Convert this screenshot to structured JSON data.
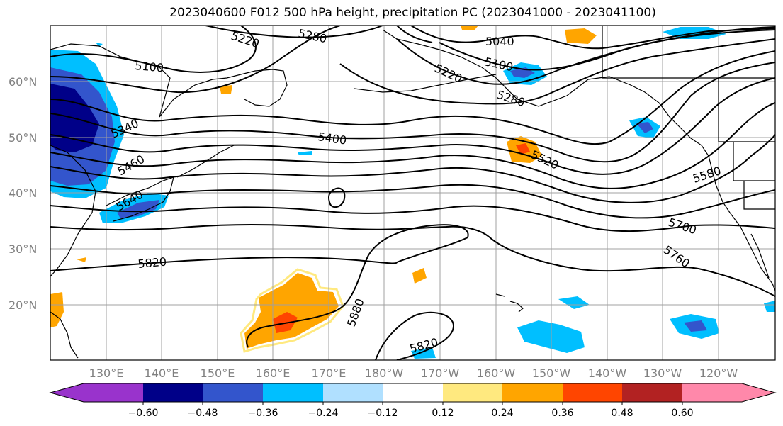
{
  "title": "2023040600 F012 500 hPa height, precipitation PC (2023041000 - 2023041100)",
  "lat_labels": [
    "60°N",
    "50°N",
    "40°N",
    "30°N",
    "20°N"
  ],
  "lon_labels": [
    "130°E",
    "140°E",
    "150°E",
    "160°E",
    "170°E",
    "180°W",
    "170°W",
    "160°W",
    "150°W",
    "140°W",
    "130°W",
    "120°W"
  ],
  "contour_labels": [
    "5100",
    "5220",
    "5280",
    "5040",
    "5100",
    "5220",
    "5280",
    "5340",
    "5400",
    "5460",
    "5520",
    "5580",
    "5640",
    "5700",
    "5760",
    "5820",
    "5880",
    "5820"
  ],
  "colorbar": {
    "ticks": [
      "−0.60",
      "−0.48",
      "−0.36",
      "−0.24",
      "−0.12",
      "0.12",
      "0.24",
      "0.36",
      "0.48",
      "0.60"
    ],
    "colors": [
      "#9933cc",
      "#000088",
      "#3355cc",
      "#00bfff",
      "#b0e0ff",
      "#ffffff",
      "#ffe97f",
      "#ffa500",
      "#ff4500",
      "#b22222",
      "#ff88aa"
    ]
  },
  "colors": {
    "grid": "#a0a0a0",
    "contour": "#000000",
    "coast": "#000000"
  }
}
